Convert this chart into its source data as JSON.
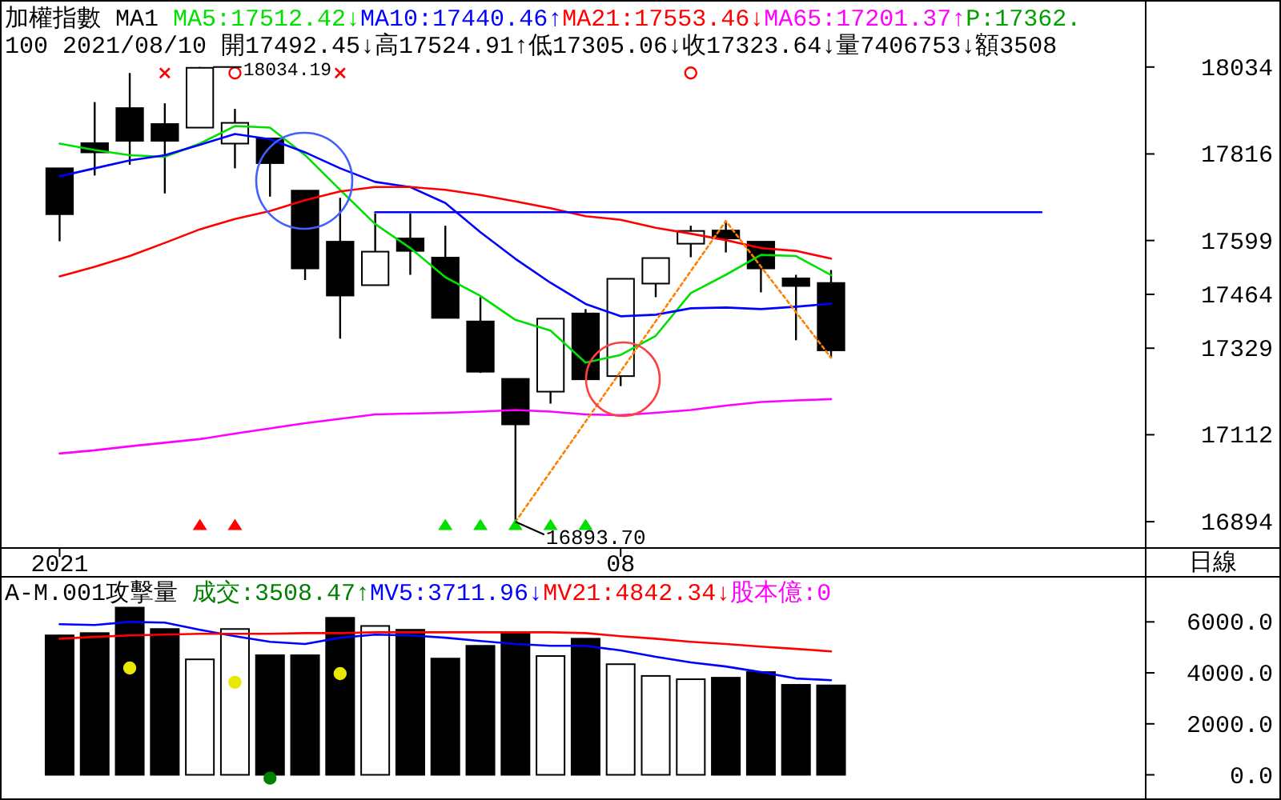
{
  "chart_data": [
    {
      "type": "candlestick",
      "title": "加權指數 MA1",
      "subtitle": "100 2021/08/10 開17492.45↓高17524.91↑低17305.06↓收17323.64↓量7406753↓額3508",
      "categories": [
        "2021",
        null,
        null,
        null,
        null,
        null,
        null,
        null,
        null,
        null,
        null,
        null,
        null,
        null,
        null,
        null,
        "08",
        null,
        null,
        null,
        null,
        null,
        null,
        null,
        null,
        null,
        null,
        null,
        null,
        null,
        null
      ],
      "ohlc": [
        [
          17780,
          17780,
          17597,
          17665
        ],
        [
          17843,
          17946,
          17762,
          17820
        ],
        [
          17931,
          18019,
          17789,
          17849
        ],
        [
          17891,
          17943,
          17717,
          17849
        ],
        [
          17882,
          18034.19,
          17882,
          18032
        ],
        [
          17842,
          17929,
          17780,
          17894
        ],
        [
          17855,
          17855,
          17709,
          17793
        ],
        [
          17724,
          17724,
          17500,
          17529
        ],
        [
          17596,
          17706,
          17353,
          17461
        ],
        [
          17487,
          17667,
          17487,
          17571
        ],
        [
          17604,
          17667,
          17513,
          17573
        ],
        [
          17556,
          17636,
          17405,
          17405
        ],
        [
          17396,
          17457,
          17267,
          17270
        ],
        [
          17252,
          17252,
          16893.7,
          17138
        ],
        [
          17220,
          17403,
          17190,
          17403
        ],
        [
          17416,
          17427,
          17251,
          17251
        ],
        [
          17259,
          17503,
          17234,
          17503
        ],
        [
          17491,
          17555,
          17457,
          17555
        ],
        [
          17591,
          17636,
          17557,
          17623
        ],
        [
          17624,
          17648,
          17569,
          17604
        ],
        [
          17596,
          17596,
          17469,
          17529
        ],
        [
          17504,
          17513,
          17349,
          17485
        ],
        [
          17492.45,
          17524.91,
          17305.06,
          17323.64
        ],
        null,
        null,
        null,
        null,
        null,
        null,
        null,
        null
      ],
      "colors": [
        "#000000",
        "#000000",
        "#000000",
        "#000000",
        "#ffffff",
        "#ffffff",
        "#000000",
        "#000000",
        "#000000",
        "#ffffff",
        "#000000",
        "#000000",
        "#000000",
        "#000000",
        "#ffffff",
        "#000000",
        "#ffffff",
        "#ffffff",
        "#ffffff",
        "#000000",
        "#000000",
        "#000000",
        "#000000",
        null,
        null,
        null,
        null,
        null,
        null,
        null,
        null
      ],
      "series": [
        {
          "type": "line",
          "name": "MA5:17512.42↓",
          "color": "#00e000",
          "values": [
            17842,
            17826,
            17813,
            17809,
            17842,
            17886,
            17882,
            17813,
            17726,
            17640,
            17580,
            17507,
            17460,
            17400,
            17373,
            17293,
            17312,
            17360,
            17467,
            17513,
            17563,
            17560,
            17512.42,
            null,
            null,
            null,
            null,
            null,
            null,
            null,
            null
          ]
        },
        {
          "type": "line",
          "name": "MA10:17440.46↑",
          "color": "#0000ff",
          "values": [
            17760,
            17780,
            17800,
            17813,
            17839,
            17866,
            17853,
            17820,
            17780,
            17746,
            17733,
            17693,
            17620,
            17553,
            17493,
            17440,
            17409,
            17413,
            17429,
            17431,
            17427,
            17433,
            17440.46,
            null,
            null,
            null,
            null,
            null,
            null,
            null,
            null
          ]
        },
        {
          "type": "line",
          "name": "MA21:17553.46↓",
          "color": "#ff0000",
          "values": [
            17509,
            17533,
            17560,
            17593,
            17627,
            17653,
            17673,
            17700,
            17722,
            17733,
            17733,
            17726,
            17713,
            17697,
            17680,
            17660,
            17651,
            17631,
            17616,
            17600,
            17580,
            17573,
            17553.46,
            null,
            null,
            null,
            null,
            null,
            null,
            null,
            null
          ]
        },
        {
          "type": "line",
          "name": "MA65:17201.37↑",
          "color": "#ff00ff",
          "values": [
            17065,
            17073,
            17083,
            17092,
            17101,
            17115,
            17128,
            17141,
            17152,
            17163,
            17165,
            17167,
            17170,
            17174,
            17170,
            17163,
            17161,
            17167,
            17174,
            17185,
            17194,
            17198,
            17201.37,
            null,
            null,
            null,
            null,
            null,
            null,
            null,
            null
          ]
        },
        {
          "type": "line",
          "color": "#0000ff",
          "values": [
            null,
            null,
            null,
            null,
            null,
            null,
            null,
            null,
            null,
            17670,
            17670,
            17670,
            17670,
            17670,
            17670,
            17670,
            17670,
            17670,
            17670,
            17670,
            17670,
            17670,
            17670,
            17670,
            17670,
            17670,
            17670,
            17670,
            17670,
            null,
            null
          ]
        },
        {
          "type": "line",
          "color": "#ff8000",
          "line_style": "dotted",
          "values": [
            null,
            null,
            null,
            null,
            null,
            null,
            null,
            null,
            null,
            null,
            null,
            null,
            null,
            16893.7,
            null,
            null,
            null,
            null,
            null,
            17648,
            null,
            null,
            17305.06,
            null,
            null,
            null,
            null,
            null,
            null,
            null,
            null
          ]
        },
        {
          "type": "scatter",
          "color": "#ff0000",
          "marker": "cross",
          "values": [
            null,
            null,
            null,
            18019,
            null,
            null,
            null,
            null,
            18019,
            null,
            null,
            null,
            null,
            null,
            null,
            null,
            null,
            null,
            null,
            null,
            null,
            null,
            null,
            null,
            null,
            null,
            null,
            null,
            null,
            null,
            null
          ]
        },
        {
          "type": "scatter",
          "color": "#ff0000",
          "marker": "circle",
          "values": [
            null,
            null,
            null,
            null,
            null,
            18019,
            null,
            null,
            null,
            null,
            null,
            null,
            null,
            null,
            null,
            null,
            null,
            null,
            18019,
            null,
            null,
            null,
            null,
            null,
            null,
            null,
            null,
            null,
            null,
            null,
            null
          ]
        },
        {
          "type": "scatter",
          "color": "#ff0000",
          "marker": "triangle",
          "values": [
            null,
            null,
            null,
            null,
            16887,
            16887,
            null,
            null,
            null,
            null,
            null,
            null,
            null,
            null,
            null,
            null,
            null,
            null,
            null,
            null,
            null,
            null,
            null,
            null,
            null,
            null,
            null,
            null,
            null,
            null,
            null
          ]
        },
        {
          "type": "scatter",
          "color": "#00e000",
          "marker": "triangle",
          "values": [
            null,
            null,
            null,
            null,
            null,
            null,
            null,
            null,
            null,
            null,
            null,
            16887,
            16887,
            16887,
            16887,
            16887,
            null,
            null,
            null,
            null,
            null,
            null,
            null,
            null,
            null,
            null,
            null,
            null,
            null,
            null,
            null
          ]
        }
      ],
      "ylim": [
        16830,
        18198
      ],
      "yticks": [
        18034,
        17816,
        17599,
        17464,
        17329,
        17112,
        16894
      ],
      "legend": "top",
      "annotations": [
        "P:17362.",
        "18034.19",
        "16893.70"
      ]
    },
    {
      "type": "bar",
      "title": "A-M.001攻擊量",
      "categories": [
        "2021",
        null,
        null,
        null,
        null,
        null,
        null,
        null,
        null,
        null,
        null,
        null,
        null,
        null,
        null,
        null,
        "08",
        null,
        null,
        null,
        null,
        null,
        null,
        null,
        null,
        null,
        null,
        null,
        null,
        null,
        null
      ],
      "series": [
        {
          "name": "成交:3508.47↑",
          "color": "#008000",
          "colors": [
            "#000000",
            "#000000",
            "#000000",
            "#000000",
            "#ffffff",
            "#ffffff",
            "#000000",
            "#000000",
            "#000000",
            "#ffffff",
            "#000000",
            "#000000",
            "#000000",
            "#000000",
            "#ffffff",
            "#000000",
            "#ffffff",
            "#ffffff",
            "#ffffff",
            "#000000",
            "#000000",
            "#000000",
            "#000000",
            null,
            null,
            null,
            null,
            null,
            null,
            null,
            null
          ],
          "values": [
            5470,
            5560,
            6560,
            5720,
            4530,
            5720,
            4690,
            4690,
            6160,
            5840,
            5690,
            4560,
            5060,
            5590,
            4660,
            5340,
            4340,
            3880,
            3750,
            3810,
            4030,
            3530,
            3508.47,
            null,
            null,
            null,
            null,
            null,
            null,
            null,
            null
          ]
        },
        {
          "type": "line",
          "name": "MV5:3711.96↓",
          "color": "#0000ff",
          "values": [
            5910,
            5880,
            6000,
            5970,
            5690,
            5440,
            5220,
            5130,
            5380,
            5500,
            5470,
            5380,
            5250,
            5130,
            5060,
            5060,
            4880,
            4630,
            4410,
            4250,
            4030,
            3780,
            3711.96,
            null,
            null,
            null,
            null,
            null,
            null,
            null,
            null
          ]
        },
        {
          "type": "line",
          "name": "MV21:4842.34↓",
          "color": "#ff0000",
          "values": [
            5340,
            5410,
            5470,
            5500,
            5530,
            5530,
            5530,
            5560,
            5560,
            5590,
            5590,
            5590,
            5590,
            5590,
            5590,
            5560,
            5440,
            5340,
            5220,
            5130,
            5030,
            4940,
            4842.34,
            null,
            null,
            null,
            null,
            null,
            null,
            null,
            null
          ]
        },
        {
          "type": "scatter",
          "color": "#e8e800",
          "marker": "circle",
          "values": [
            null,
            null,
            4190,
            null,
            null,
            3630,
            null,
            null,
            3970,
            null,
            null,
            null,
            null,
            null,
            null,
            null,
            null,
            null,
            null,
            null,
            null,
            null,
            null,
            null,
            null,
            null,
            null,
            null,
            null,
            null,
            null
          ]
        },
        {
          "type": "scatter",
          "color": "#008000",
          "marker": "circle",
          "values": [
            null,
            null,
            null,
            null,
            null,
            null,
            -130,
            null,
            null,
            null,
            null,
            null,
            null,
            null,
            null,
            null,
            null,
            null,
            null,
            null,
            null,
            null,
            null,
            null,
            null,
            null,
            null,
            null,
            null,
            null,
            null
          ]
        }
      ],
      "ylim": [
        -800,
        7800
      ],
      "yticks": [
        {
          "value": 6000,
          "label": "6000.0"
        },
        {
          "value": 4000,
          "label": "4000.0"
        },
        {
          "value": 2000,
          "label": "2000.0"
        },
        {
          "value": 0,
          "label": "0.0"
        }
      ],
      "tick_labels": "y",
      "legend": "top",
      "annotations": [
        "股本億:0",
        "日線"
      ]
    }
  ]
}
